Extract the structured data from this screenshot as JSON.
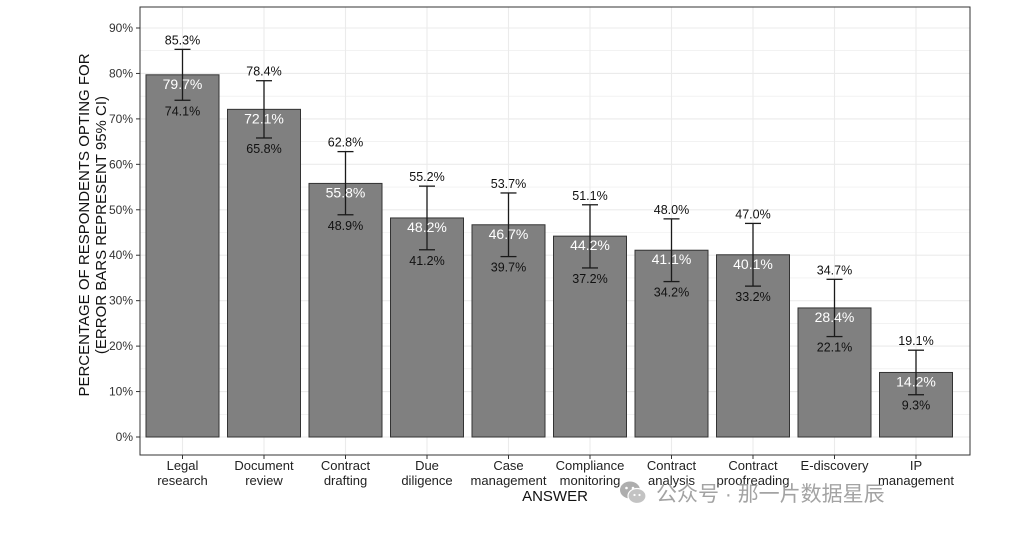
{
  "chart_data": {
    "type": "bar",
    "xlabel": "ANSWER",
    "ylabel": "PERCENTAGE OF RESPONDENTS OPTING FOR",
    "ylabel_line2": "(ERROR BARS REPRESENT 95% CI)",
    "ylim": [
      0,
      90
    ],
    "yticks": [
      "0%",
      "10%",
      "20%",
      "30%",
      "40%",
      "50%",
      "60%",
      "70%",
      "80%",
      "90%"
    ],
    "grid": true,
    "categories": [
      [
        "Legal",
        "research"
      ],
      [
        "Document",
        "review"
      ],
      [
        "Contract",
        "drafting"
      ],
      [
        "Due",
        "diligence"
      ],
      [
        "Case",
        "management"
      ],
      [
        "Compliance",
        "monitoring"
      ],
      [
        "Contract",
        "analysis"
      ],
      [
        "Contract",
        "proofreading"
      ],
      [
        "E-discovery"
      ],
      [
        "IP",
        "management"
      ]
    ],
    "values": [
      79.7,
      72.1,
      55.8,
      48.2,
      46.7,
      44.2,
      41.1,
      40.1,
      28.4,
      14.2
    ],
    "ci_low": [
      74.1,
      65.8,
      48.9,
      41.2,
      39.7,
      37.2,
      34.2,
      33.2,
      22.1,
      9.3
    ],
    "ci_high": [
      85.3,
      78.4,
      62.8,
      55.2,
      53.7,
      51.1,
      48.0,
      47.0,
      34.7,
      19.1
    ],
    "value_labels": [
      "79.7%",
      "72.1%",
      "55.8%",
      "48.2%",
      "46.7%",
      "44.2%",
      "41.1%",
      "40.1%",
      "28.4%",
      "14.2%"
    ],
    "ci_low_labels": [
      "74.1%",
      "65.8%",
      "48.9%",
      "41.2%",
      "39.7%",
      "37.2%",
      "34.2%",
      "33.2%",
      "22.1%",
      "9.3%"
    ],
    "ci_high_labels": [
      "85.3%",
      "78.4%",
      "62.8%",
      "55.2%",
      "53.7%",
      "51.1%",
      "48.0%",
      "47.0%",
      "34.7%",
      "19.1%"
    ],
    "colors": {
      "bar": "#808080",
      "bar_border": "#333333",
      "errorbar": "#1a1a1a",
      "grid": "#ebebeb",
      "panel_border": "#333333"
    }
  },
  "watermark": {
    "text": "公众号 · 那一片数据星辰",
    "icon": "wechat-icon"
  }
}
